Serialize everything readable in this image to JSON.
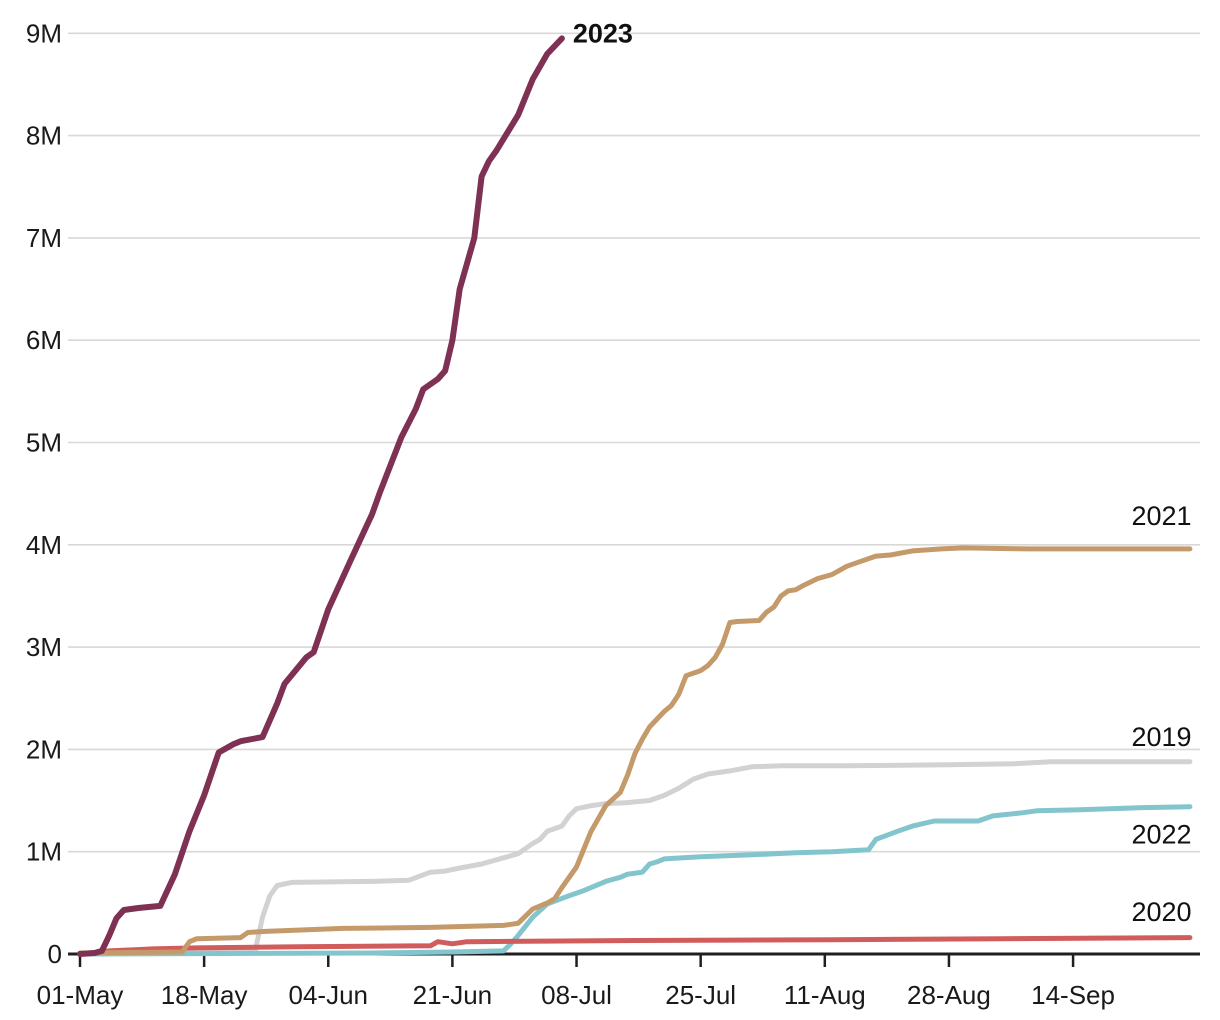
{
  "chart_data": {
    "type": "line",
    "title": "",
    "xlabel": "",
    "ylabel": "",
    "grid": "horizontal-only",
    "legend_position": "inline-right-labels",
    "colors": {
      "grid": "#D8D8D8",
      "axis": "#1F1F1F",
      "tick_text": "#1A1A1A",
      "label_text": "#111111"
    },
    "x_axis": {
      "unit": "days-since-01-May",
      "range_days": [
        0,
        153.5
      ],
      "ticks": [
        {
          "day": 0,
          "label": "01-May"
        },
        {
          "day": 17,
          "label": "18-May"
        },
        {
          "day": 34,
          "label": "04-Jun"
        },
        {
          "day": 51,
          "label": "21-Jun"
        },
        {
          "day": 68,
          "label": "08-Jul"
        },
        {
          "day": 85,
          "label": "25-Jul"
        },
        {
          "day": 102,
          "label": "11-Aug"
        },
        {
          "day": 119,
          "label": "28-Aug"
        },
        {
          "day": 136,
          "label": "14-Sep"
        }
      ]
    },
    "y_axis": {
      "unit": "millions",
      "range": [
        0,
        9
      ],
      "ticks": [
        {
          "value": 0,
          "label": "0"
        },
        {
          "value": 1,
          "label": "1M"
        },
        {
          "value": 2,
          "label": "2M"
        },
        {
          "value": 3,
          "label": "3M"
        },
        {
          "value": 4,
          "label": "4M"
        },
        {
          "value": 5,
          "label": "5M"
        },
        {
          "value": 6,
          "label": "6M"
        },
        {
          "value": 7,
          "label": "7M"
        },
        {
          "value": 8,
          "label": "8M"
        },
        {
          "value": 9,
          "label": "9M"
        }
      ]
    },
    "series": [
      {
        "name": "2019",
        "color": "#D2D2D2",
        "stroke_width": 5,
        "label": {
          "day": 144,
          "value": 2.12,
          "bold": false
        },
        "points": [
          [
            0,
            0.01
          ],
          [
            20,
            0.02
          ],
          [
            24,
            0.03
          ],
          [
            25,
            0.36
          ],
          [
            26,
            0.57
          ],
          [
            27,
            0.67
          ],
          [
            29,
            0.7
          ],
          [
            40,
            0.71
          ],
          [
            45,
            0.72
          ],
          [
            48,
            0.8
          ],
          [
            50,
            0.81
          ],
          [
            52,
            0.84
          ],
          [
            55,
            0.88
          ],
          [
            60,
            0.98
          ],
          [
            62,
            1.08
          ],
          [
            63,
            1.12
          ],
          [
            64,
            1.2
          ],
          [
            66,
            1.25
          ],
          [
            67,
            1.35
          ],
          [
            68,
            1.42
          ],
          [
            70,
            1.45
          ],
          [
            72,
            1.47
          ],
          [
            75,
            1.48
          ],
          [
            78,
            1.5
          ],
          [
            80,
            1.55
          ],
          [
            82,
            1.62
          ],
          [
            84,
            1.71
          ],
          [
            86,
            1.76
          ],
          [
            89,
            1.79
          ],
          [
            92,
            1.83
          ],
          [
            96,
            1.84
          ],
          [
            105,
            1.84
          ],
          [
            119,
            1.85
          ],
          [
            128,
            1.86
          ],
          [
            133,
            1.88
          ],
          [
            152,
            1.88
          ]
        ]
      },
      {
        "name": "2022",
        "color": "#82C5CD",
        "stroke_width": 5,
        "label": {
          "day": 144,
          "value": 1.17,
          "bold": false
        },
        "points": [
          [
            0,
            0.0
          ],
          [
            40,
            0.01
          ],
          [
            51,
            0.02
          ],
          [
            58,
            0.03
          ],
          [
            59,
            0.1
          ],
          [
            60,
            0.18
          ],
          [
            62,
            0.36
          ],
          [
            64,
            0.49
          ],
          [
            67,
            0.57
          ],
          [
            69,
            0.62
          ],
          [
            72,
            0.71
          ],
          [
            74,
            0.75
          ],
          [
            75,
            0.78
          ],
          [
            77,
            0.8
          ],
          [
            78,
            0.88
          ],
          [
            79,
            0.9
          ],
          [
            80,
            0.93
          ],
          [
            85,
            0.95
          ],
          [
            92,
            0.97
          ],
          [
            98,
            0.99
          ],
          [
            103,
            1.0
          ],
          [
            108,
            1.02
          ],
          [
            109,
            1.12
          ],
          [
            112,
            1.2
          ],
          [
            114,
            1.25
          ],
          [
            117,
            1.3
          ],
          [
            123,
            1.3
          ],
          [
            125,
            1.35
          ],
          [
            129,
            1.38
          ],
          [
            131,
            1.4
          ],
          [
            137,
            1.41
          ],
          [
            145,
            1.43
          ],
          [
            152,
            1.44
          ]
        ]
      },
      {
        "name": "2020",
        "color": "#D05C5C",
        "stroke_width": 5,
        "label": {
          "day": 144,
          "value": 0.41,
          "bold": false
        },
        "points": [
          [
            0,
            0.0
          ],
          [
            3,
            0.02
          ],
          [
            4,
            0.03
          ],
          [
            10,
            0.05
          ],
          [
            16,
            0.06
          ],
          [
            30,
            0.07
          ],
          [
            48,
            0.08
          ],
          [
            49,
            0.12
          ],
          [
            51,
            0.1
          ],
          [
            53,
            0.12
          ],
          [
            71,
            0.13
          ],
          [
            103,
            0.14
          ],
          [
            126,
            0.15
          ],
          [
            152,
            0.16
          ]
        ]
      },
      {
        "name": "2021",
        "color": "#C49A6B",
        "stroke_width": 5,
        "label": {
          "day": 144,
          "value": 4.28,
          "bold": false
        },
        "points": [
          [
            0,
            0.01
          ],
          [
            14,
            0.02
          ],
          [
            15,
            0.12
          ],
          [
            16,
            0.15
          ],
          [
            22,
            0.16
          ],
          [
            23,
            0.21
          ],
          [
            25,
            0.22
          ],
          [
            36,
            0.25
          ],
          [
            48,
            0.26
          ],
          [
            58,
            0.28
          ],
          [
            60,
            0.3
          ],
          [
            62,
            0.44
          ],
          [
            64,
            0.5
          ],
          [
            65,
            0.54
          ],
          [
            66,
            0.65
          ],
          [
            68,
            0.85
          ],
          [
            70,
            1.2
          ],
          [
            72,
            1.45
          ],
          [
            74,
            1.58
          ],
          [
            75,
            1.75
          ],
          [
            76,
            1.96
          ],
          [
            77,
            2.1
          ],
          [
            78,
            2.22
          ],
          [
            80,
            2.37
          ],
          [
            81,
            2.43
          ],
          [
            82,
            2.54
          ],
          [
            83,
            2.72
          ],
          [
            85,
            2.77
          ],
          [
            86,
            2.82
          ],
          [
            87,
            2.9
          ],
          [
            88,
            3.03
          ],
          [
            89,
            3.24
          ],
          [
            90,
            3.25
          ],
          [
            93,
            3.26
          ],
          [
            94,
            3.34
          ],
          [
            95,
            3.39
          ],
          [
            96,
            3.5
          ],
          [
            97,
            3.55
          ],
          [
            98,
            3.56
          ],
          [
            99,
            3.6
          ],
          [
            101,
            3.67
          ],
          [
            103,
            3.71
          ],
          [
            105,
            3.79
          ],
          [
            107,
            3.84
          ],
          [
            109,
            3.89
          ],
          [
            111,
            3.9
          ],
          [
            114,
            3.94
          ],
          [
            118,
            3.96
          ],
          [
            121,
            3.97
          ],
          [
            130,
            3.96
          ],
          [
            140,
            3.96
          ],
          [
            152,
            3.96
          ]
        ]
      },
      {
        "name": "2023",
        "color": "#7F3154",
        "stroke_width": 6,
        "label": {
          "day": 67.5,
          "value": 9.0,
          "bold": true
        },
        "points": [
          [
            0,
            0
          ],
          [
            2,
            0.01
          ],
          [
            3,
            0.03
          ],
          [
            4,
            0.18
          ],
          [
            5,
            0.35
          ],
          [
            6,
            0.43
          ],
          [
            8,
            0.45
          ],
          [
            11,
            0.47
          ],
          [
            13,
            0.78
          ],
          [
            15,
            1.2
          ],
          [
            17,
            1.55
          ],
          [
            19,
            1.97
          ],
          [
            21,
            2.05
          ],
          [
            22,
            2.08
          ],
          [
            25,
            2.12
          ],
          [
            27,
            2.45
          ],
          [
            28,
            2.64
          ],
          [
            31,
            2.9
          ],
          [
            32,
            2.95
          ],
          [
            34,
            3.37
          ],
          [
            37,
            3.84
          ],
          [
            40,
            4.3
          ],
          [
            41,
            4.5
          ],
          [
            44,
            5.05
          ],
          [
            46,
            5.33
          ],
          [
            47,
            5.52
          ],
          [
            48,
            5.57
          ],
          [
            49,
            5.62
          ],
          [
            50,
            5.7
          ],
          [
            51,
            6.0
          ],
          [
            52,
            6.5
          ],
          [
            54,
            7.0
          ],
          [
            55,
            7.6
          ],
          [
            56,
            7.75
          ],
          [
            57,
            7.85
          ],
          [
            60,
            8.2
          ],
          [
            62,
            8.55
          ],
          [
            64,
            8.8
          ],
          [
            66,
            8.95
          ]
        ]
      }
    ]
  }
}
